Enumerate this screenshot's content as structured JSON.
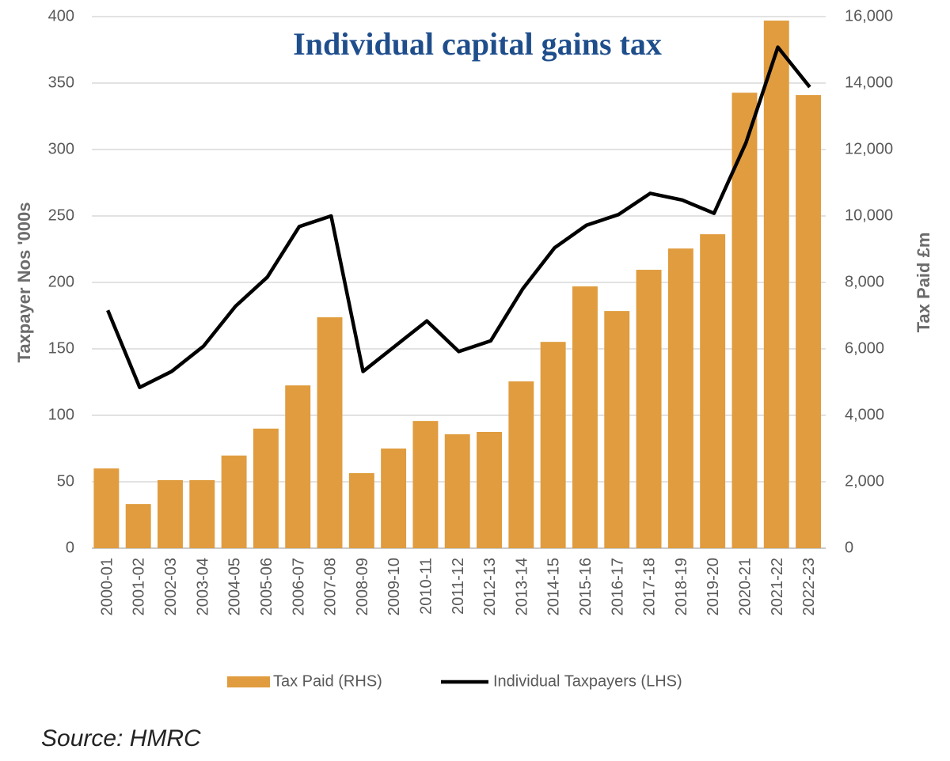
{
  "chart_data": {
    "type": "bar",
    "title": "Individual capital gains tax",
    "y_label": "Taxpayer Nos '000s",
    "y2_label": "Tax Paid £m",
    "source": "Source: HMRC",
    "categories": [
      "2000-01",
      "2001-02",
      "2002-03",
      "2003-04",
      "2004-05",
      "2005-06",
      "2006-07",
      "2007-08",
      "2008-09",
      "2009-10",
      "2010-11",
      "2011-12",
      "2012-13",
      "2013-14",
      "2014-15",
      "2015-16",
      "2016-17",
      "2017-18",
      "2018-19",
      "2019-20",
      "2020-21",
      "2021-22",
      "2022-23"
    ],
    "series": [
      {
        "name": "Tax Paid (RHS)",
        "type": "bar",
        "axis": "y2",
        "color": "#e09c3e",
        "values": [
          2400,
          1330,
          2050,
          2050,
          2790,
          3600,
          4900,
          6950,
          2260,
          3000,
          3830,
          3430,
          3500,
          5020,
          6210,
          7880,
          7140,
          8380,
          9020,
          9450,
          13710,
          15880,
          13640
        ]
      },
      {
        "name": "Individual Taxpayers (LHS)",
        "type": "line",
        "axis": "y",
        "color": "#000000",
        "values": [
          179,
          121,
          133,
          152,
          182,
          204,
          242,
          250,
          133,
          152,
          171,
          148,
          156,
          195,
          226,
          243,
          251,
          267,
          262,
          252,
          305,
          377,
          347
        ]
      }
    ],
    "ylim": [
      0,
      400
    ],
    "yticks": [
      0,
      50,
      100,
      150,
      200,
      250,
      300,
      350,
      400
    ],
    "y2lim": [
      0,
      16000
    ],
    "y2ticks": [
      0,
      {
        "value": 2000,
        "label": "2,000"
      },
      {
        "value": 4000,
        "label": "4,000"
      },
      {
        "value": 6000,
        "label": "6,000"
      },
      {
        "value": 8000,
        "label": "8,000"
      },
      {
        "value": 10000,
        "label": "10,000"
      },
      {
        "value": 12000,
        "label": "12,000"
      },
      {
        "value": 14000,
        "label": "14,000"
      },
      {
        "value": 16000,
        "label": "16,000"
      }
    ],
    "grid": true,
    "legend": "bottom"
  }
}
